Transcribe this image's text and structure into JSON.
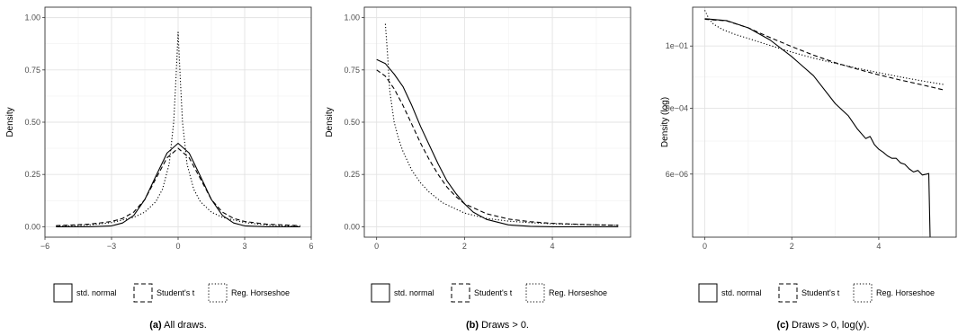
{
  "figure": {
    "legend_labels": [
      "std. normal",
      "Student's t",
      "Reg. Horseshoe"
    ],
    "captions": [
      {
        "label": "(a)",
        "text": "All draws."
      },
      {
        "label": "(b)",
        "text": "Draws > 0."
      },
      {
        "label": "(c)",
        "text": "Draws > 0, log(y)."
      }
    ]
  },
  "chart_data": [
    {
      "type": "line",
      "title": "",
      "xlabel": "",
      "ylabel": "Density",
      "xlim": [
        -6,
        6
      ],
      "ylim": [
        -0.05,
        1.05
      ],
      "x_ticks": [
        -6,
        -3,
        0,
        3,
        6
      ],
      "x_tick_labels": [
        "−6",
        "−3",
        "0",
        "3",
        "6"
      ],
      "y_ticks": [
        0,
        0.25,
        0.5,
        0.75,
        1.0
      ],
      "y_tick_labels": [
        "0.00",
        "0.25",
        "0.50",
        "0.75",
        "1.00"
      ],
      "grid": true,
      "legend": "bottom",
      "series": [
        {
          "name": "std. normal",
          "style": "solid",
          "x": [
            -5.5,
            -4,
            -3,
            -2.5,
            -2,
            -1.5,
            -1,
            -0.5,
            0,
            0.5,
            1,
            1.5,
            2,
            2.5,
            3,
            4,
            5.5
          ],
          "y": [
            0,
            0,
            0.004,
            0.018,
            0.054,
            0.13,
            0.242,
            0.352,
            0.399,
            0.352,
            0.242,
            0.13,
            0.054,
            0.018,
            0.004,
            0,
            0
          ]
        },
        {
          "name": "Student's t",
          "style": "dashed",
          "x": [
            -5.5,
            -4,
            -3,
            -2.5,
            -2,
            -1.5,
            -1,
            -0.5,
            0,
            0.5,
            1,
            1.5,
            2,
            2.5,
            3,
            4,
            5.5
          ],
          "y": [
            0.005,
            0.012,
            0.025,
            0.04,
            0.07,
            0.13,
            0.23,
            0.33,
            0.375,
            0.33,
            0.23,
            0.13,
            0.07,
            0.04,
            0.025,
            0.012,
            0.005
          ]
        },
        {
          "name": "Reg. Horseshoe",
          "style": "dotted",
          "x": [
            -5.5,
            -4,
            -3,
            -2,
            -1.5,
            -1,
            -0.7,
            -0.4,
            -0.2,
            -0.1,
            0,
            0.1,
            0.2,
            0.4,
            0.7,
            1,
            1.5,
            2,
            3,
            4,
            5.5
          ],
          "y": [
            0.002,
            0.008,
            0.02,
            0.045,
            0.07,
            0.12,
            0.18,
            0.3,
            0.5,
            0.7,
            0.93,
            0.7,
            0.5,
            0.3,
            0.18,
            0.12,
            0.07,
            0.045,
            0.02,
            0.008,
            0.002
          ]
        }
      ]
    },
    {
      "type": "line",
      "title": "",
      "xlabel": "",
      "ylabel": "Density",
      "xlim": [
        -0.28,
        5.78
      ],
      "ylim": [
        -0.05,
        1.05
      ],
      "x_ticks": [
        0,
        2,
        4
      ],
      "x_tick_labels": [
        "0",
        "2",
        "4"
      ],
      "y_ticks": [
        0,
        0.25,
        0.5,
        0.75,
        1.0
      ],
      "y_tick_labels": [
        "0.00",
        "0.25",
        "0.50",
        "0.75",
        "1.00"
      ],
      "grid": true,
      "legend": "bottom",
      "series": [
        {
          "name": "std. normal",
          "style": "solid",
          "x": [
            0,
            0.2,
            0.4,
            0.6,
            0.8,
            1,
            1.2,
            1.4,
            1.6,
            1.8,
            2,
            2.2,
            2.5,
            3,
            3.5,
            4,
            5.5
          ],
          "y": [
            0.8,
            0.78,
            0.73,
            0.67,
            0.58,
            0.48,
            0.39,
            0.3,
            0.22,
            0.16,
            0.11,
            0.07,
            0.035,
            0.009,
            0.002,
            0,
            0
          ]
        },
        {
          "name": "Student's t",
          "style": "dashed",
          "x": [
            0,
            0.2,
            0.4,
            0.6,
            0.8,
            1,
            1.2,
            1.4,
            1.6,
            1.8,
            2,
            2.5,
            3,
            3.5,
            4,
            5,
            5.5
          ],
          "y": [
            0.75,
            0.72,
            0.66,
            0.58,
            0.49,
            0.4,
            0.32,
            0.25,
            0.19,
            0.145,
            0.11,
            0.062,
            0.037,
            0.024,
            0.016,
            0.009,
            0.007
          ]
        },
        {
          "name": "Reg. Horseshoe",
          "style": "dotted",
          "x": [
            0.2,
            0.25,
            0.3,
            0.4,
            0.5,
            0.6,
            0.8,
            1,
            1.2,
            1.5,
            2,
            2.5,
            3,
            3.5,
            4,
            5,
            5.5
          ],
          "y": [
            0.97,
            0.82,
            0.65,
            0.5,
            0.42,
            0.36,
            0.27,
            0.21,
            0.165,
            0.115,
            0.065,
            0.04,
            0.027,
            0.019,
            0.014,
            0.009,
            0.007
          ]
        }
      ]
    },
    {
      "type": "line",
      "title": "",
      "xlabel": "",
      "ylabel": "Density (log)",
      "scale_y": "log10",
      "xlim": [
        -0.28,
        5.78
      ],
      "ylim": [
        -7.3,
        0.28
      ],
      "x_ticks": [
        0,
        2,
        4
      ],
      "x_tick_labels": [
        "0",
        "2",
        "4"
      ],
      "y_ticks": [
        -1,
        -3.05,
        -5.22
      ],
      "y_tick_labels": [
        "1e−01",
        "9e−04",
        "6e−06"
      ],
      "grid": true,
      "legend": "bottom",
      "series": [
        {
          "name": "std. normal",
          "style": "solid",
          "x": [
            0,
            0.5,
            1,
            1.5,
            2,
            2.5,
            3,
            3.3,
            3.5,
            3.7,
            3.8,
            3.9,
            4,
            4.1,
            4.2,
            4.3,
            4.4,
            4.5,
            4.6,
            4.7,
            4.8,
            4.9,
            5,
            5.1,
            5.15,
            5.18
          ],
          "y": [
            -0.1,
            -0.16,
            -0.4,
            -0.8,
            -1.35,
            -1.98,
            -2.9,
            -3.3,
            -3.72,
            -4.05,
            -3.98,
            -4.25,
            -4.4,
            -4.5,
            -4.62,
            -4.7,
            -4.7,
            -4.85,
            -4.9,
            -5.05,
            -5.15,
            -5.1,
            -5.25,
            -5.22,
            -5.2,
            -7.3
          ]
        },
        {
          "name": "Student's t",
          "style": "dashed",
          "x": [
            0,
            0.5,
            1,
            1.5,
            2,
            2.5,
            3,
            3.5,
            4,
            4.5,
            5,
            5.5
          ],
          "y": [
            -0.12,
            -0.17,
            -0.4,
            -0.72,
            -1.02,
            -1.3,
            -1.55,
            -1.76,
            -1.95,
            -2.12,
            -2.28,
            -2.45
          ]
        },
        {
          "name": "Reg. Horseshoe",
          "style": "dotted",
          "x": [
            0,
            0.1,
            0.2,
            0.4,
            0.7,
            1,
            1.5,
            2,
            2.5,
            3,
            3.5,
            4,
            4.5,
            5,
            5.5
          ],
          "y": [
            0.18,
            -0.12,
            -0.28,
            -0.45,
            -0.62,
            -0.75,
            -0.98,
            -1.2,
            -1.4,
            -1.57,
            -1.73,
            -1.88,
            -2.02,
            -2.15,
            -2.27
          ]
        }
      ]
    }
  ]
}
